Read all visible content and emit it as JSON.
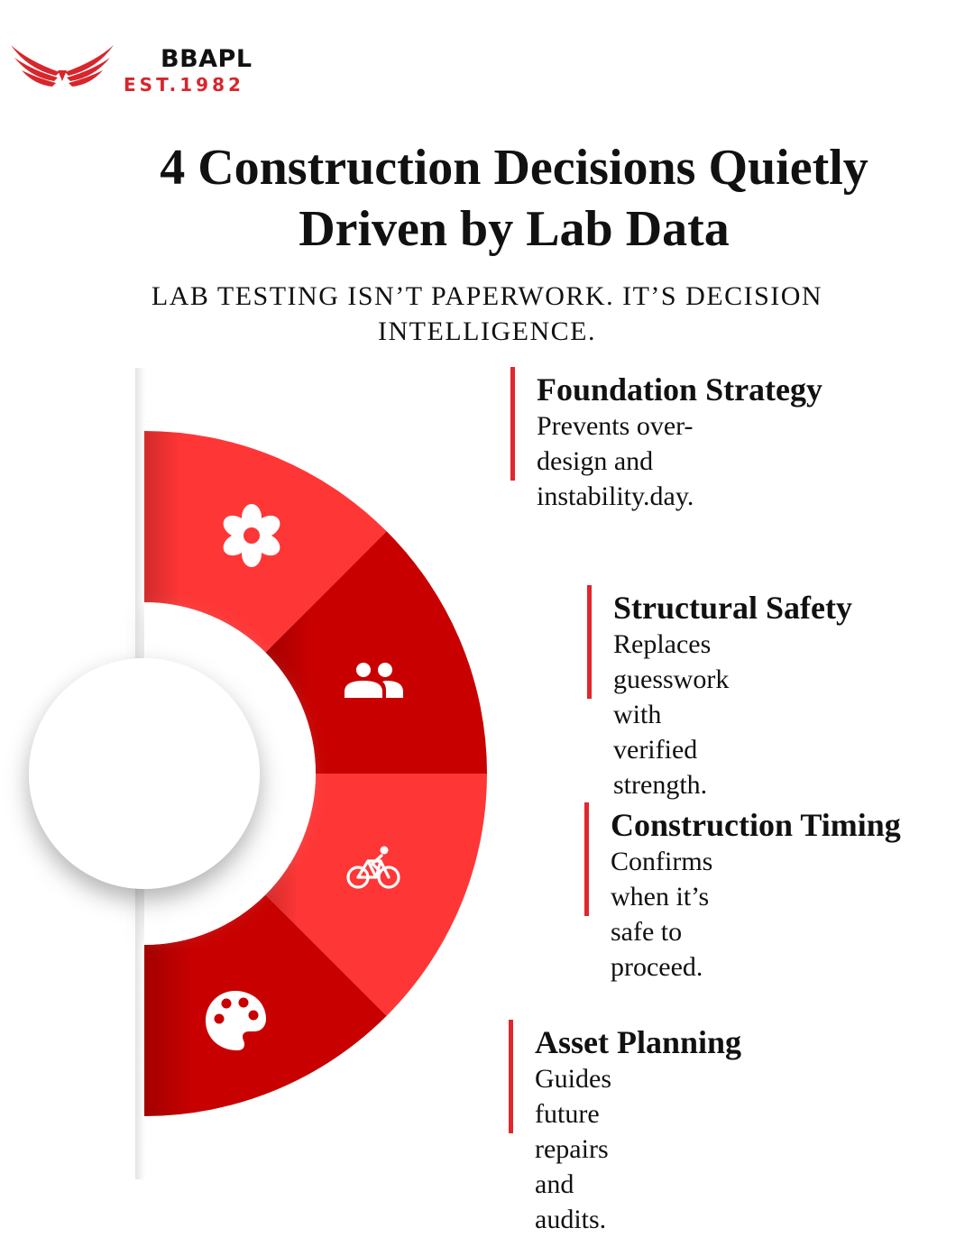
{
  "brand": {
    "name": "BBAPL",
    "established": "EST.1982",
    "accent_color": "#d7262c"
  },
  "title": {
    "line1": "4 Construction Decisions Quietly",
    "line2": "Driven by Lab Data"
  },
  "subtitle": {
    "line1": "LAB TESTING ISN’T PAPERWORK. IT’S DECISION",
    "line2": "INTELLIGENCE."
  },
  "colors": {
    "segment_light": "#ff3636",
    "segment_dark": "#c80000",
    "bar": "#e3262d"
  },
  "items": [
    {
      "title": "Foundation Strategy",
      "desc_line1": "Prevents over-design and",
      "desc_line2": "instability.day.",
      "icon": "flower-icon"
    },
    {
      "title": "Structural Safety",
      "desc_line1": "Replaces guesswork with",
      "desc_line2": "verified strength.",
      "icon": "people-icon"
    },
    {
      "title": "Construction Timing",
      "desc_line1": "Confirms when it’s",
      "desc_line2": "safe to proceed.",
      "icon": "bicycle-icon"
    },
    {
      "title": "Asset Planning",
      "desc_line1": "Guides future repairs",
      "desc_line2": "and audits.",
      "icon": "palette-icon"
    }
  ]
}
